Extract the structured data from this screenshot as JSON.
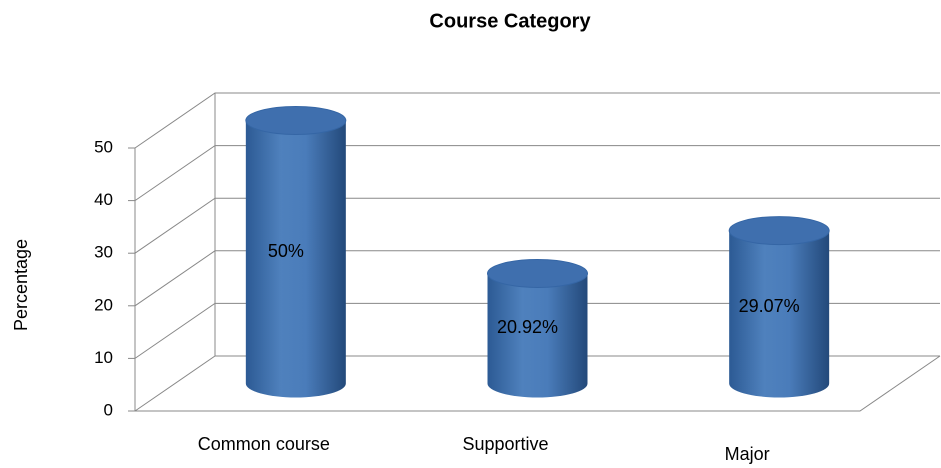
{
  "chart_data": {
    "type": "bar",
    "title": "Course Category",
    "y_label": "Percentage",
    "categories": [
      "Common course",
      "Supportive",
      "Major"
    ],
    "values": [
      50,
      20.92,
      29.07
    ],
    "value_labels": [
      "50%",
      "20.92%",
      "29.07%"
    ],
    "color": "#4f81bd",
    "ylim": [
      0,
      50
    ],
    "yticks": [
      0,
      10,
      20,
      30,
      40,
      50
    ],
    "grid": true
  }
}
